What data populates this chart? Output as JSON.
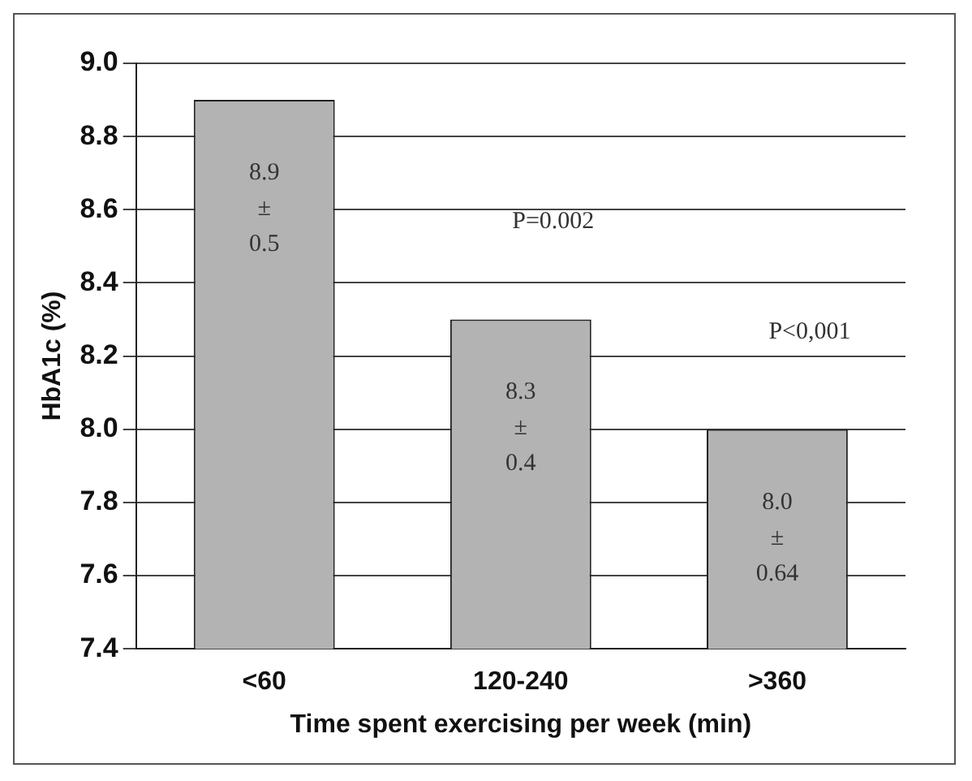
{
  "chart_data": {
    "type": "bar",
    "xlabel": "Time spent exercising per week (min)",
    "ylabel": "HbA1c (%)",
    "categories": [
      "<60",
      "120-240",
      ">360"
    ],
    "values": [
      8.9,
      8.3,
      8.0
    ],
    "color": "#b3b3b3",
    "value_labels": [
      "8.9\n±\n0.5",
      "8.3\n±\n0.4",
      "8.0\n±\n0.64"
    ],
    "ylim": [
      7.4,
      9.0
    ],
    "yticks": [
      {
        "value": 7.4,
        "label": "7.4"
      },
      {
        "value": 7.6,
        "label": "7.6"
      },
      {
        "value": 7.8,
        "label": "7.8"
      },
      {
        "value": 8.0,
        "label": "8.0"
      },
      {
        "value": 8.2,
        "label": "8.2"
      },
      {
        "value": 8.4,
        "label": "8.4"
      },
      {
        "value": 8.6,
        "label": "8.6"
      },
      {
        "value": 8.8,
        "label": "8.8"
      },
      {
        "value": 9.0,
        "label": "9.0"
      }
    ],
    "grid": "y",
    "legend": false,
    "annotations": [
      "P=0.002",
      "P<0,001"
    ]
  }
}
